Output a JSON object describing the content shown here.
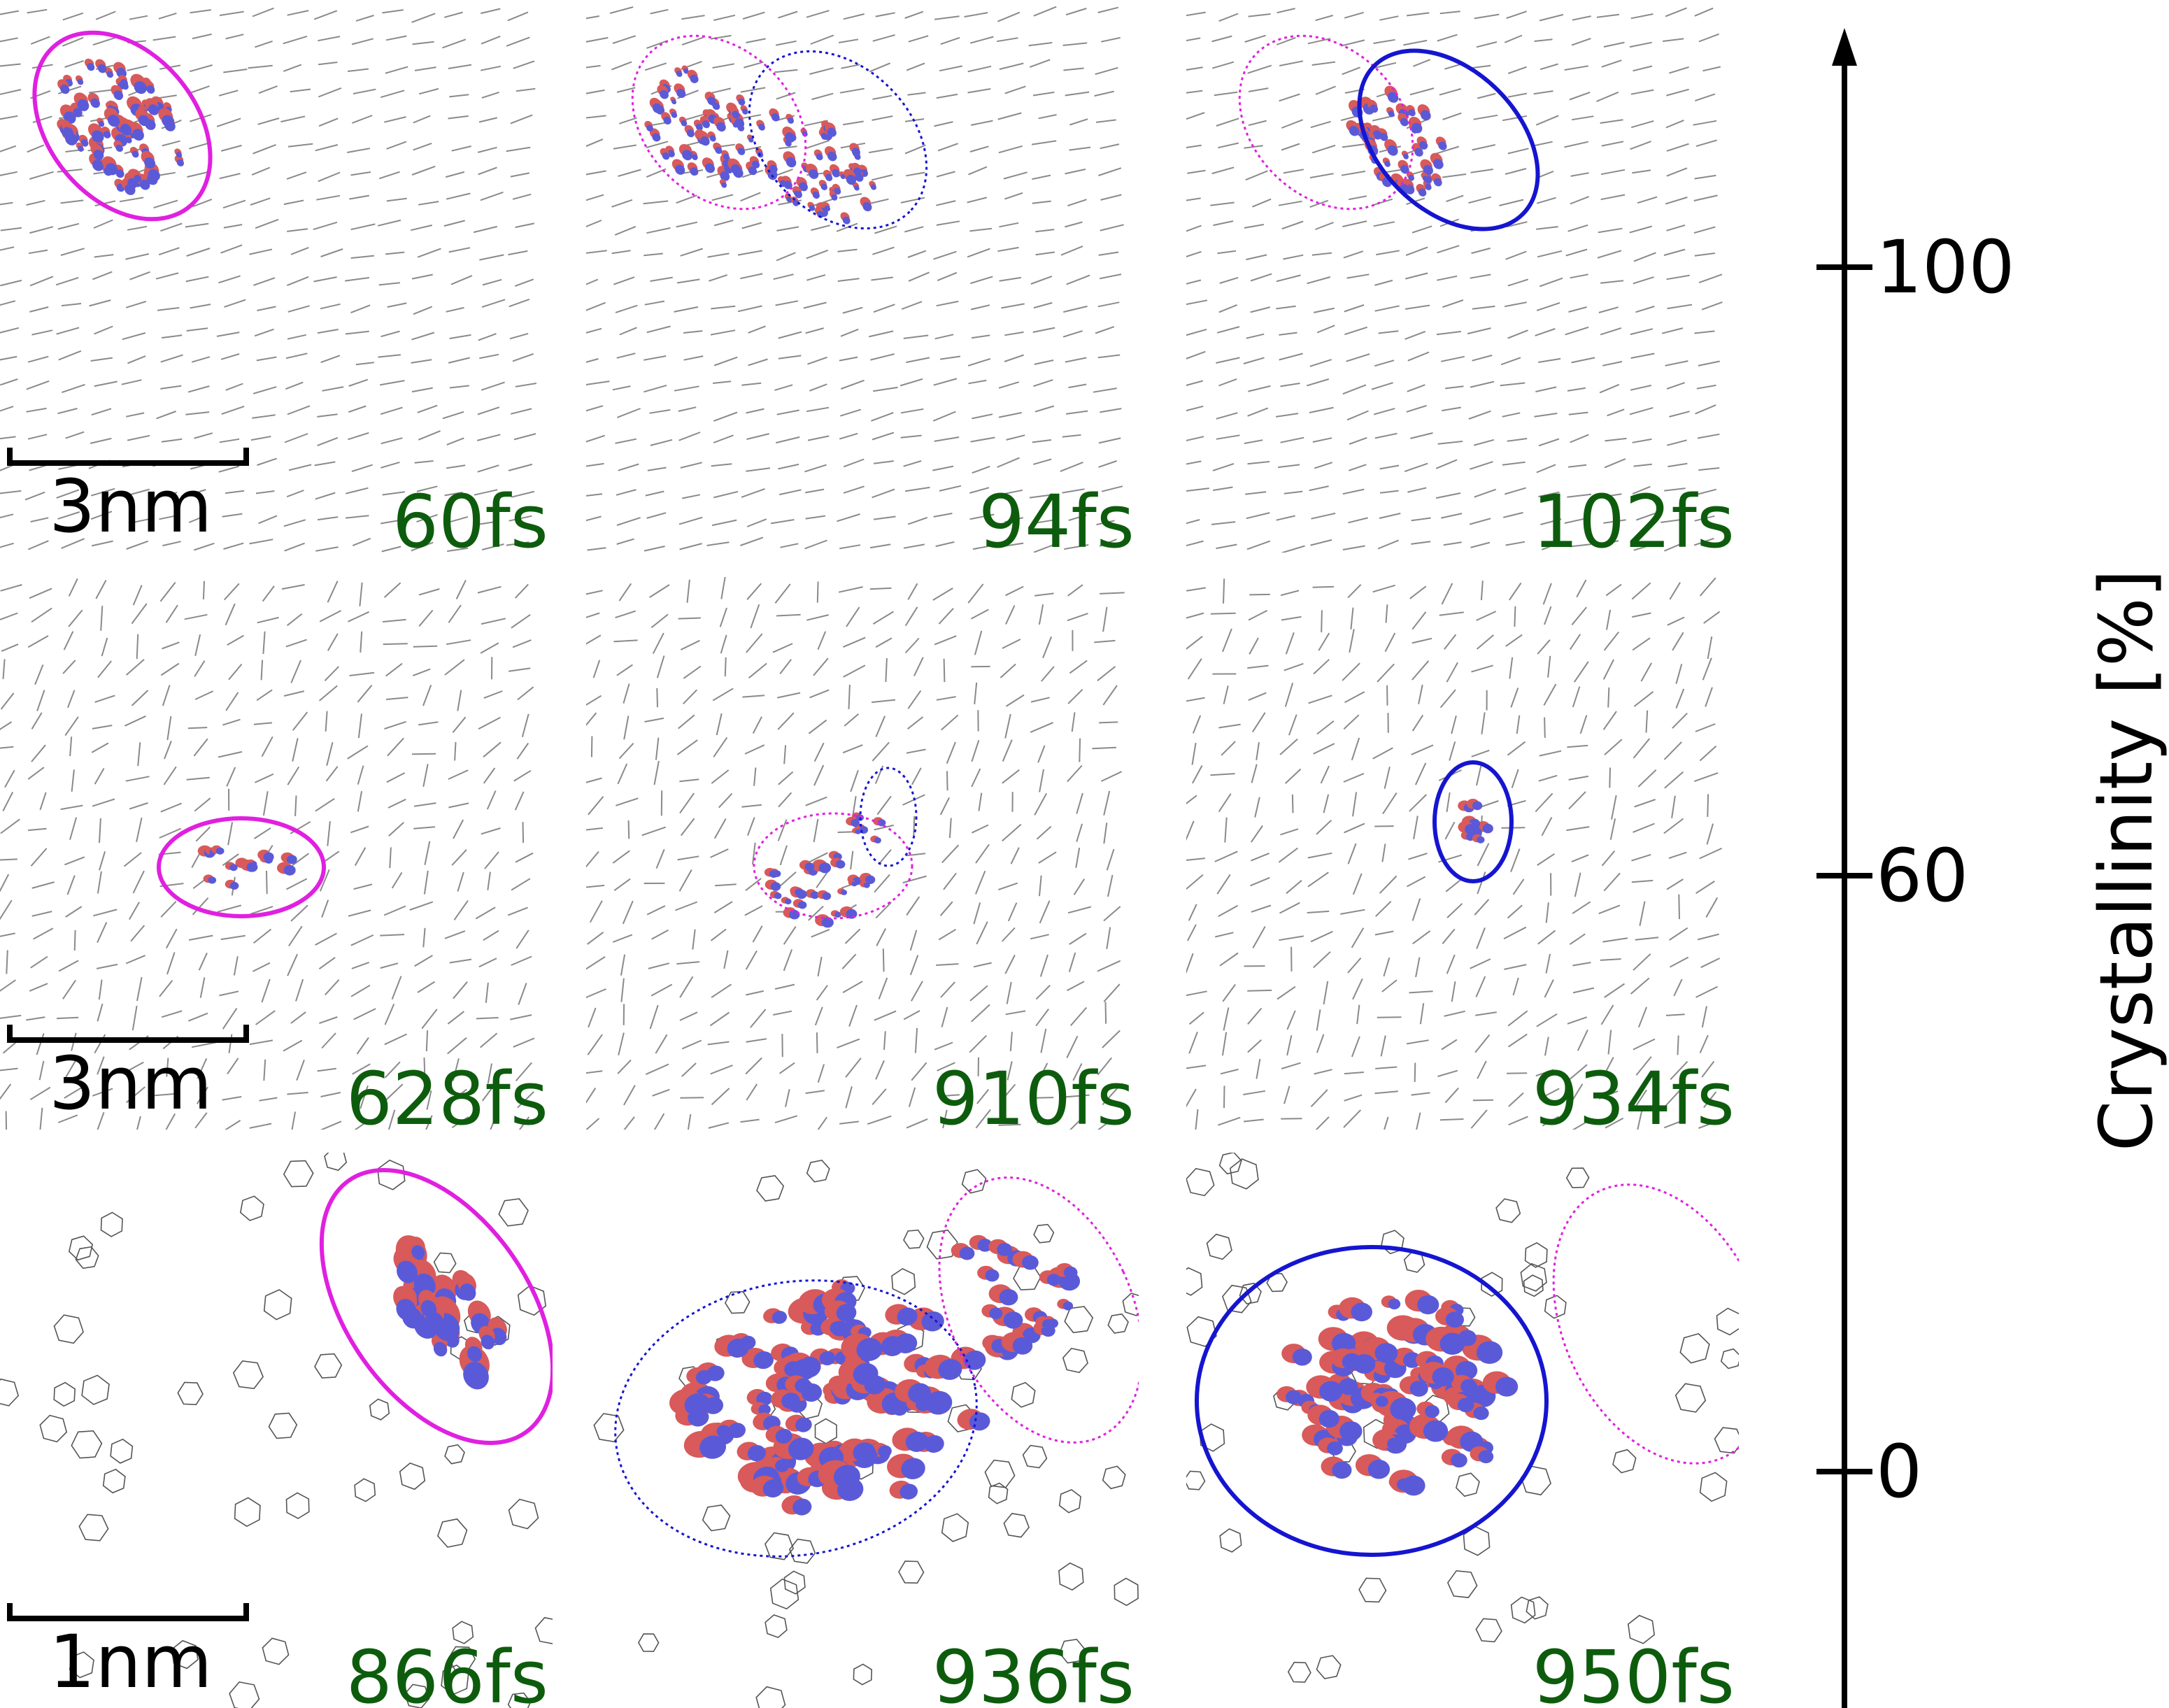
{
  "panels": [
    {
      "time": "60fs",
      "scale_label": "3nm"
    },
    {
      "time": "94fs",
      "scale_label": ""
    },
    {
      "time": "102fs",
      "scale_label": ""
    },
    {
      "time": "628fs",
      "scale_label": "3nm"
    },
    {
      "time": "910fs",
      "scale_label": ""
    },
    {
      "time": "934fs",
      "scale_label": ""
    },
    {
      "time": "866fs",
      "scale_label": "1nm"
    },
    {
      "time": "936fs",
      "scale_label": ""
    },
    {
      "time": "950fs",
      "scale_label": ""
    }
  ],
  "axis": {
    "title": "Crystallinity [%]",
    "ticks": [
      {
        "label": "100",
        "value": 100
      },
      {
        "label": "60",
        "value": 60
      },
      {
        "label": "0",
        "value": 0
      }
    ]
  },
  "colors": {
    "time_label": "#0d5c0d",
    "magenta_outline": "#e020e0",
    "blue_outline": "#1515d0",
    "lobe_red": "#d85a5a",
    "lobe_blue": "#5a5ad8",
    "molecule_gray": "#8a8a8a"
  }
}
